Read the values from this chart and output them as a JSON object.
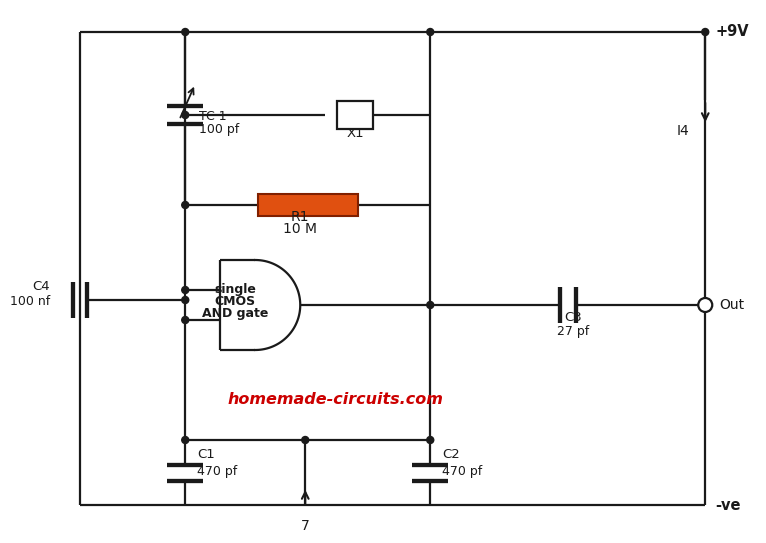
{
  "bg_color": "#ffffff",
  "line_color": "#1a1a1a",
  "watermark": "homemade-circuits.com",
  "watermark_color": "#cc0000",
  "r1_color": "#e05010",
  "vcc_label": "+9V",
  "gnd_label": "-ve",
  "out_label": "Out",
  "tc1_label": "TC 1",
  "tc1_value": "100 pf",
  "x1_label": "X1",
  "r1_label": "R1",
  "r1_value": "10 M",
  "c1_label": "C1",
  "c1_value": "470 pf",
  "c2_label": "C2",
  "c2_value": "470 pf",
  "c3_label": "C3",
  "c3_value": "27 pf",
  "c4_label": "C4",
  "c4_value": "100 nf",
  "i4_label": "I4",
  "gate_lines": [
    "single",
    "CMOS",
    "AND gate"
  ]
}
